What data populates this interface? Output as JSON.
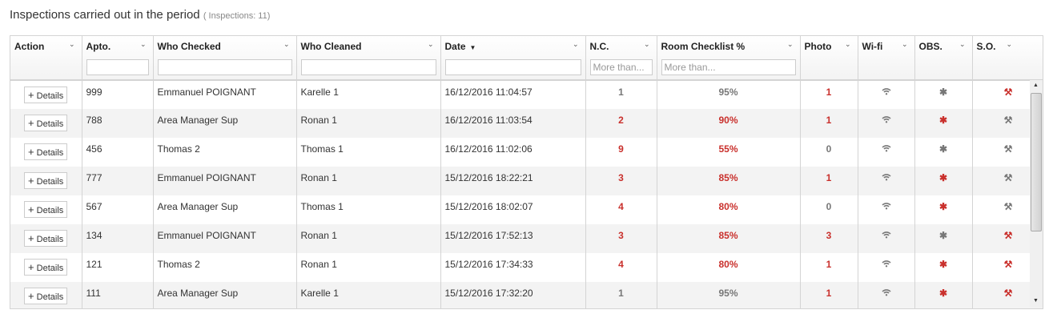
{
  "title": "Inspections carried out in the period",
  "count_label": "( Inspections: 11)",
  "colors": {
    "red": "#c9302c",
    "gray": "#777777"
  },
  "columns": [
    {
      "label": "Action",
      "filter": null
    },
    {
      "label": "Apto.",
      "filter": ""
    },
    {
      "label": "Who Checked",
      "filter": ""
    },
    {
      "label": "Who Cleaned",
      "filter": ""
    },
    {
      "label": "Date",
      "filter": "",
      "sorted": "desc"
    },
    {
      "label": "N.C.",
      "filter": "",
      "placeholder": "More than..."
    },
    {
      "label": "Room Checklist %",
      "filter": "",
      "placeholder": "More than..."
    },
    {
      "label": "Photo",
      "filter": null
    },
    {
      "label": "Wi-fi",
      "filter": null
    },
    {
      "label": "OBS.",
      "filter": null
    },
    {
      "label": "S.O.",
      "filter": null
    }
  ],
  "details_label": "Details",
  "rows": [
    {
      "apto": "999",
      "checked": "Emmanuel POIGNANT",
      "cleaned": "Karelle 1",
      "date": "16/12/2016 11:04:57",
      "nc": "1",
      "nc_alert": false,
      "pct": "95%",
      "pct_alert": false,
      "photo": "1",
      "photo_alert": true,
      "wifi": "wifi-icon",
      "obs_alert": false,
      "so_alert": true
    },
    {
      "apto": "788",
      "checked": "Area Manager Sup",
      "cleaned": "Ronan 1",
      "date": "16/12/2016 11:03:54",
      "nc": "2",
      "nc_alert": true,
      "pct": "90%",
      "pct_alert": true,
      "photo": "1",
      "photo_alert": true,
      "wifi": "wifi-icon",
      "obs_alert": true,
      "so_alert": false
    },
    {
      "apto": "456",
      "checked": "Thomas 2",
      "cleaned": "Thomas 1",
      "date": "16/12/2016 11:02:06",
      "nc": "9",
      "nc_alert": true,
      "pct": "55%",
      "pct_alert": true,
      "photo": "0",
      "photo_alert": false,
      "wifi": "wifi-icon",
      "obs_alert": false,
      "so_alert": false
    },
    {
      "apto": "777",
      "checked": "Emmanuel POIGNANT",
      "cleaned": "Ronan 1",
      "date": "15/12/2016 18:22:21",
      "nc": "3",
      "nc_alert": true,
      "pct": "85%",
      "pct_alert": true,
      "photo": "1",
      "photo_alert": true,
      "wifi": "wifi-icon",
      "obs_alert": true,
      "so_alert": false
    },
    {
      "apto": "567",
      "checked": "Area Manager Sup",
      "cleaned": "Thomas 1",
      "date": "15/12/2016 18:02:07",
      "nc": "4",
      "nc_alert": true,
      "pct": "80%",
      "pct_alert": true,
      "photo": "0",
      "photo_alert": false,
      "wifi": "wifi-icon",
      "obs_alert": true,
      "so_alert": false
    },
    {
      "apto": "134",
      "checked": "Emmanuel POIGNANT",
      "cleaned": "Ronan 1",
      "date": "15/12/2016 17:52:13",
      "nc": "3",
      "nc_alert": true,
      "pct": "85%",
      "pct_alert": true,
      "photo": "3",
      "photo_alert": true,
      "wifi": "wifi-icon",
      "obs_alert": false,
      "so_alert": true
    },
    {
      "apto": "121",
      "checked": "Thomas 2",
      "cleaned": "Ronan 1",
      "date": "15/12/2016 17:34:33",
      "nc": "4",
      "nc_alert": true,
      "pct": "80%",
      "pct_alert": true,
      "photo": "1",
      "photo_alert": true,
      "wifi": "wifi-icon",
      "obs_alert": true,
      "so_alert": true
    },
    {
      "apto": "111",
      "checked": "Area Manager Sup",
      "cleaned": "Karelle 1",
      "date": "15/12/2016 17:32:20",
      "nc": "1",
      "nc_alert": false,
      "pct": "95%",
      "pct_alert": false,
      "photo": "1",
      "photo_alert": true,
      "wifi": "wifi-icon",
      "obs_alert": true,
      "so_alert": true
    }
  ]
}
